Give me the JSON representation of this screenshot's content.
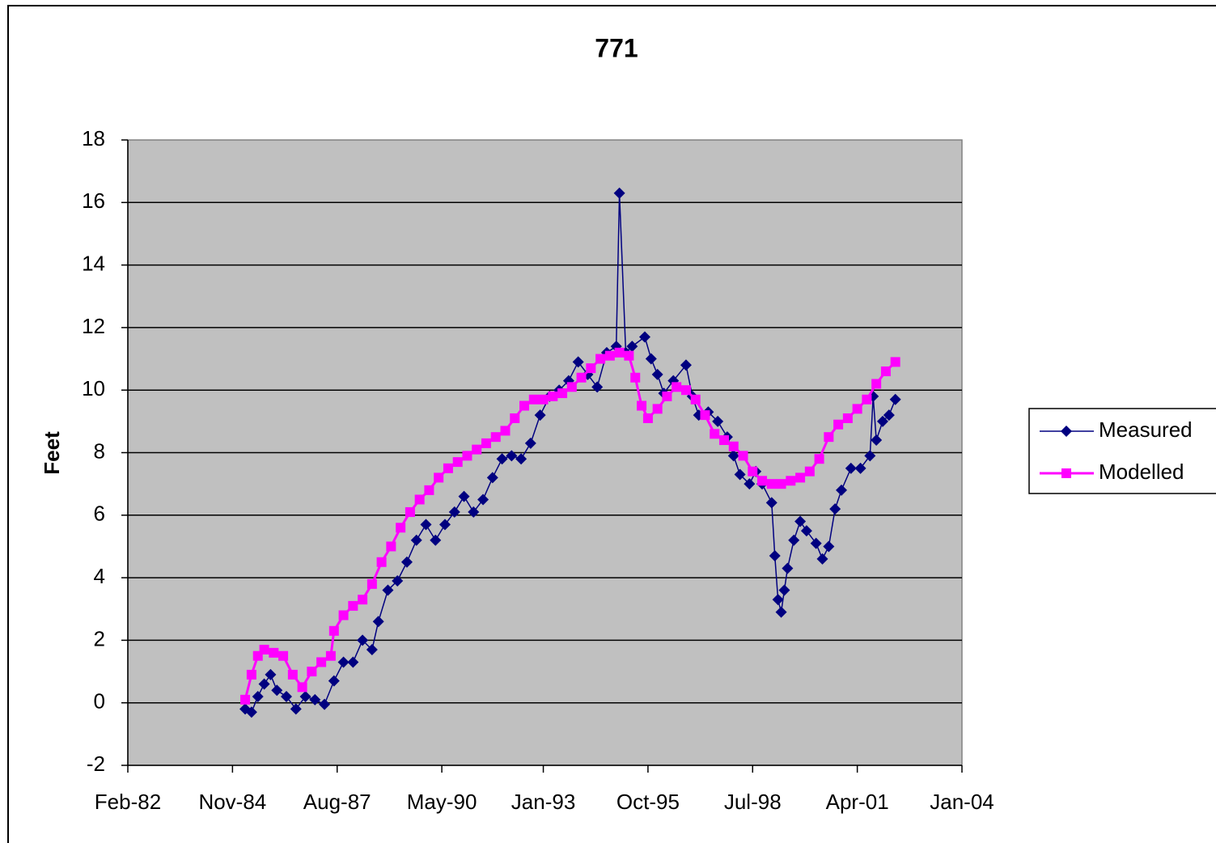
{
  "chart_data": {
    "type": "line",
    "title": "771",
    "y_label": "Feet",
    "xlim": [
      "1982-02",
      "2004-01"
    ],
    "xticks": [
      {
        "value": "1982-02",
        "label": "Feb-82"
      },
      {
        "value": "1984-11",
        "label": "Nov-84"
      },
      {
        "value": "1987-08",
        "label": "Aug-87"
      },
      {
        "value": "1990-05",
        "label": "May-90"
      },
      {
        "value": "1993-01",
        "label": "Jan-93"
      },
      {
        "value": "1995-10",
        "label": "Oct-95"
      },
      {
        "value": "1998-07",
        "label": "Jul-98"
      },
      {
        "value": "2001-04",
        "label": "Apr-01"
      },
      {
        "value": "2004-01",
        "label": "Jan-04"
      }
    ],
    "ylim": [
      -2,
      18
    ],
    "yticks": [
      -2,
      0,
      2,
      4,
      6,
      8,
      10,
      12,
      14,
      16,
      18
    ],
    "grid": true,
    "legend": "right",
    "series": [
      {
        "name": "Measured",
        "color": "#000080",
        "marker": "diamond",
        "x": [
          "1985-03",
          "1985-05",
          "1985-07",
          "1985-09",
          "1985-11",
          "1986-01",
          "1986-04",
          "1986-07",
          "1986-10",
          "1987-01",
          "1987-04",
          "1987-07",
          "1987-10",
          "1988-01",
          "1988-04",
          "1988-07",
          "1988-09",
          "1988-12",
          "1989-03",
          "1989-06",
          "1989-09",
          "1989-12",
          "1990-03",
          "1990-06",
          "1990-09",
          "1990-12",
          "1991-03",
          "1991-06",
          "1991-09",
          "1991-12",
          "1992-03",
          "1992-06",
          "1992-09",
          "1992-12",
          "1993-03",
          "1993-06",
          "1993-09",
          "1993-12",
          "1994-03",
          "1994-06",
          "1994-09",
          "1994-12",
          "1995-01",
          "1995-03",
          "1995-05",
          "1995-09",
          "1995-11",
          "1996-01",
          "1996-03",
          "1996-06",
          "1996-10",
          "1996-12",
          "1997-02",
          "1997-05",
          "1997-08",
          "1997-11",
          "1998-01",
          "1998-03",
          "1998-06",
          "1998-08",
          "1998-10",
          "1999-01",
          "1999-02",
          "1999-03",
          "1999-04",
          "1999-05",
          "1999-06",
          "1999-08",
          "1999-10",
          "1999-12",
          "2000-03",
          "2000-05",
          "2000-07",
          "2000-09",
          "2000-11",
          "2001-02",
          "2001-05",
          "2001-08",
          "2001-09",
          "2001-10",
          "2001-12",
          "2002-02",
          "2002-04"
        ],
        "values": [
          -0.2,
          -0.3,
          0.2,
          0.6,
          0.9,
          0.4,
          0.2,
          -0.2,
          0.2,
          0.1,
          -0.05,
          0.7,
          1.3,
          1.3,
          2.0,
          1.7,
          2.6,
          3.6,
          3.9,
          4.5,
          5.2,
          5.7,
          5.2,
          5.7,
          6.1,
          6.6,
          6.1,
          6.5,
          7.2,
          7.8,
          7.9,
          7.8,
          8.3,
          9.2,
          9.8,
          10.0,
          10.3,
          10.9,
          10.5,
          10.1,
          11.2,
          11.4,
          16.3,
          11.2,
          11.4,
          11.7,
          11.0,
          10.5,
          9.9,
          10.3,
          10.8,
          9.8,
          9.2,
          9.3,
          9.0,
          8.5,
          7.9,
          7.3,
          7.0,
          7.4,
          7.0,
          6.4,
          4.7,
          3.3,
          2.9,
          3.6,
          4.3,
          5.2,
          5.8,
          5.5,
          5.1,
          4.6,
          5.0,
          6.2,
          6.8,
          7.5,
          7.5,
          7.9,
          9.8,
          8.4,
          9.0,
          9.2,
          9.7
        ]
      },
      {
        "name": "Modelled",
        "color": "#ff00ff",
        "marker": "square",
        "x": [
          "1985-03",
          "1985-05",
          "1985-07",
          "1985-09",
          "1985-12",
          "1986-03",
          "1986-06",
          "1986-09",
          "1986-12",
          "1987-03",
          "1987-06",
          "1987-07",
          "1987-10",
          "1988-01",
          "1988-04",
          "1988-07",
          "1988-10",
          "1989-01",
          "1989-04",
          "1989-07",
          "1989-10",
          "1990-01",
          "1990-04",
          "1990-07",
          "1990-10",
          "1991-01",
          "1991-04",
          "1991-07",
          "1991-10",
          "1992-01",
          "1992-04",
          "1992-07",
          "1992-10",
          "1993-01",
          "1993-04",
          "1993-07",
          "1993-10",
          "1994-01",
          "1994-04",
          "1994-07",
          "1994-10",
          "1995-01",
          "1995-04",
          "1995-06",
          "1995-08",
          "1995-10",
          "1996-01",
          "1996-04",
          "1996-07",
          "1996-10",
          "1997-01",
          "1997-04",
          "1997-07",
          "1997-10",
          "1998-01",
          "1998-04",
          "1998-07",
          "1998-10",
          "1999-01",
          "1999-04",
          "1999-07",
          "1999-10",
          "2000-01",
          "2000-04",
          "2000-07",
          "2000-10",
          "2001-01",
          "2001-04",
          "2001-07",
          "2001-10",
          "2002-01",
          "2002-04"
        ],
        "values": [
          0.1,
          0.9,
          1.5,
          1.7,
          1.6,
          1.5,
          0.9,
          0.5,
          1.0,
          1.3,
          1.5,
          2.3,
          2.8,
          3.1,
          3.3,
          3.8,
          4.5,
          5.0,
          5.6,
          6.1,
          6.5,
          6.8,
          7.2,
          7.5,
          7.7,
          7.9,
          8.1,
          8.3,
          8.5,
          8.7,
          9.1,
          9.5,
          9.7,
          9.7,
          9.8,
          9.9,
          10.1,
          10.4,
          10.7,
          11.0,
          11.1,
          11.2,
          11.1,
          10.4,
          9.5,
          9.1,
          9.4,
          9.8,
          10.1,
          10.0,
          9.7,
          9.2,
          8.6,
          8.4,
          8.2,
          7.9,
          7.4,
          7.1,
          7.0,
          7.0,
          7.1,
          7.2,
          7.4,
          7.8,
          8.5,
          8.9,
          9.1,
          9.4,
          9.7,
          10.2,
          10.6,
          10.9
        ]
      }
    ]
  }
}
